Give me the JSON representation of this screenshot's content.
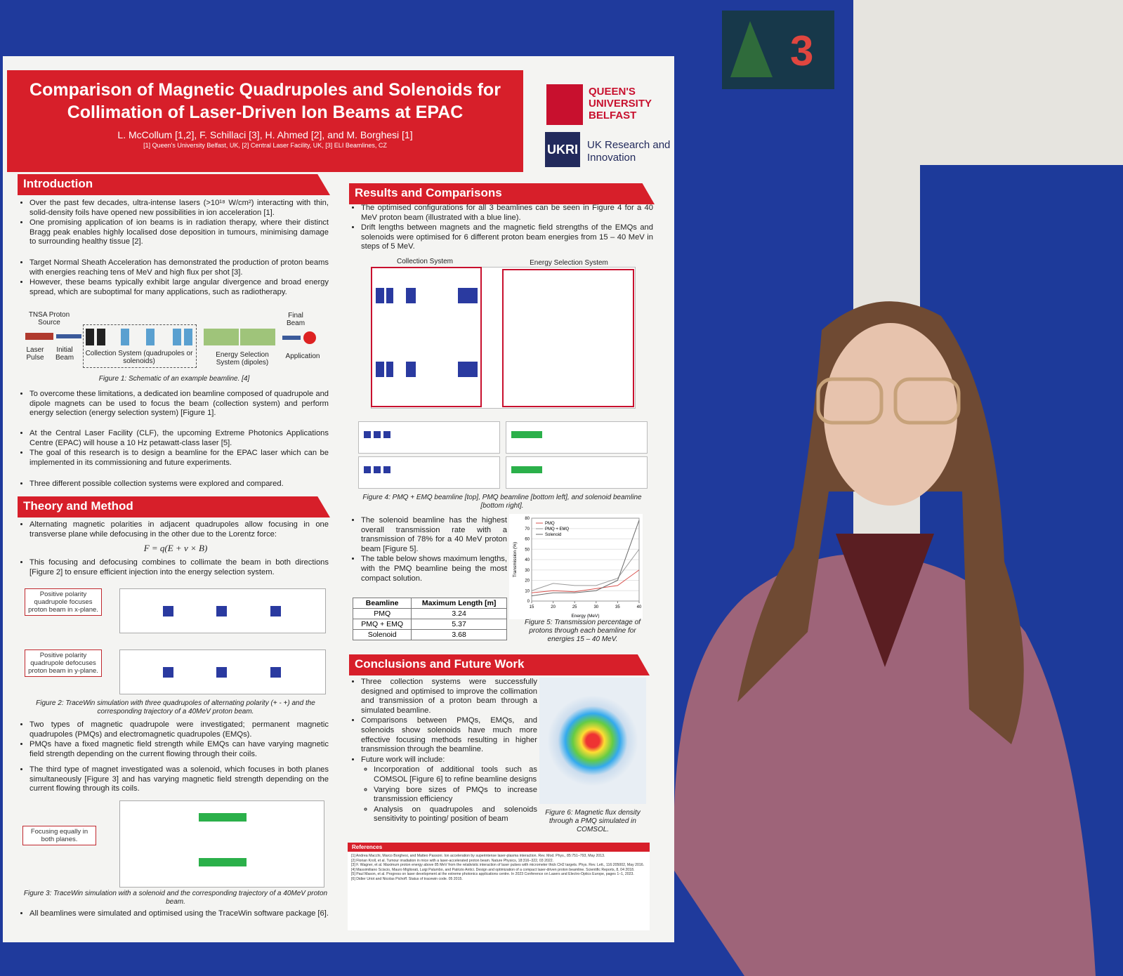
{
  "card": {
    "number": "3"
  },
  "header": {
    "title": "Comparison of Magnetic Quadrupoles and Solenoids for Collimation of Laser-Driven Ion Beams at EPAC",
    "authors": "L. McCollum [1,2], F. Schillaci [3], H. Ahmed [2], and M. Borghesi [1]",
    "affiliations": "[1] Queen's University Belfast, UK, [2] Central Laser Facility, UK, [3] ELI Beamlines, CZ"
  },
  "logos": {
    "qub": "QUEEN'S UNIVERSITY BELFAST",
    "ukri_mark": "UKRI",
    "ukri": "UK Research and Innovation"
  },
  "introduction": {
    "heading": "Introduction",
    "block1": [
      "Over the past few decades, ultra-intense lasers (>10¹⁸ W/cm²) interacting with thin, solid-density foils have opened new possibilities in ion acceleration [1].",
      "One promising application of ion beams is in radiation therapy, where their distinct Bragg peak enables highly localised dose deposition in tumours, minimising damage to surrounding healthy tissue [2]."
    ],
    "block2": [
      "Target Normal Sheath Acceleration has demonstrated the production of proton beams with energies reaching tens of MeV and high flux per shot [3].",
      "However, these beams typically exhibit large angular divergence and broad energy spread, which are suboptimal for many applications, such as radiotherapy."
    ],
    "figure1": {
      "source": "TNSA Proton Source",
      "laser": "Laser Pulse",
      "initial": "Initial Beam",
      "collection": "Collection System (quadrupoles or solenoids)",
      "energy": "Energy Selection System (dipoles)",
      "final": "Final Beam",
      "application": "Application",
      "caption": "Figure 1: Schematic of an example beamline. [4]"
    },
    "block3": [
      "To overcome these limitations, a dedicated ion beamline composed of quadrupole and dipole magnets can be used to focus the beam (collection system) and perform energy selection (energy selection system) [Figure 1]."
    ],
    "block4": [
      "At the Central Laser Facility (CLF), the upcoming Extreme Photonics Applications Centre (EPAC) will house a 10 Hz petawatt-class laser [5].",
      "The goal of this research is to design a beamline for the EPAC laser which can be implemented in its commissioning and future experiments."
    ],
    "block5": [
      "Three different possible collection systems were explored and compared."
    ]
  },
  "theory": {
    "heading": "Theory and Method",
    "block1": [
      "Alternating magnetic polarities in adjacent quadrupoles allow focusing in one transverse plane while defocusing in the other due to the Lorentz force:"
    ],
    "formula": "F = q(E + v × B)",
    "block2": [
      "This focusing and defocusing combines to collimate the beam in both directions [Figure 2] to ensure efficient injection into the energy selection system."
    ],
    "figure2": {
      "label_x": "Positive polarity quadrupole focuses proton beam in x-plane.",
      "label_y": "Positive polarity quadrupole defocuses proton beam in y-plane.",
      "caption": "Figure 2: TraceWin simulation with three quadrupoles of alternating polarity (+ - +) and the corresponding trajectory of a 40MeV proton beam."
    },
    "block3": [
      "Two types of magnetic quadrupole were investigated; permanent magnetic quadrupoles (PMQs) and electromagnetic quadrupoles (EMQs).",
      "PMQs have a fixed magnetic field strength while EMQs can have varying magnetic field strength depending on the current flowing through their coils."
    ],
    "block4": [
      "The third type of magnet investigated was a solenoid, which focuses in both planes simultaneously [Figure 3] and has varying magnetic field strength depending on the current flowing through its coils."
    ],
    "figure3": {
      "label": "Focusing equally in both planes.",
      "caption": "Figure 3: TraceWin simulation with a solenoid and the corresponding trajectory of a 40MeV proton beam."
    },
    "block5": [
      "All beamlines were simulated and optimised using the TraceWin software package [6]."
    ]
  },
  "results": {
    "heading": "Results and Comparisons",
    "block1": [
      "The optimised configurations for all 3 beamlines can be seen in Figure 4 for a 40 MeV proton beam (illustrated with a blue line).",
      "Drift lengths between magnets and the magnetic field strengths of the EMQs and solenoids were optimised for 6 different proton beam energies from 15 – 40 MeV in steps of 5 MeV."
    ],
    "figure4": {
      "collection": "Collection System",
      "energy": "Energy Selection System",
      "caption": "Figure 4: PMQ + EMQ beamline [top], PMQ beamline [bottom left], and solenoid beamline [bottom right]."
    },
    "block2": [
      "The solenoid beamline has the highest overall transmission rate with a transmission of 78% for a 40 MeV proton beam [Figure 5].",
      "The table below shows maximum lengths, with the PMQ beamline being the most compact solution."
    ],
    "table": {
      "header": [
        "Beamline",
        "Maximum Length [m]"
      ],
      "rows": [
        [
          "PMQ",
          3.24
        ],
        [
          "PMQ + EMQ",
          5.37
        ],
        [
          "Solenoid",
          3.68
        ]
      ]
    },
    "figure5": {
      "chart_data": {
        "type": "line",
        "x_label": "Energy (MeV)",
        "y_label": "Transmission (%)",
        "x": [
          15,
          20,
          25,
          30,
          35,
          40
        ],
        "xlim": [
          15,
          40
        ],
        "xticks": [
          15,
          20,
          25,
          30,
          35,
          40
        ],
        "ylim": [
          0,
          80
        ],
        "yticks": [
          0,
          10,
          20,
          30,
          40,
          50,
          60,
          70,
          80
        ],
        "series": [
          {
            "name": "PMQ",
            "color": "#d9534f",
            "values": [
              8,
              10,
              9,
              12,
              15,
              30
            ]
          },
          {
            "name": "PMQ + EMQ",
            "color": "#9a9a9a",
            "values": [
              10,
              17,
              15,
              15,
              22,
              50
            ]
          },
          {
            "name": "Solenoid",
            "color": "#6a6a6a",
            "values": [
              5,
              8,
              8,
              10,
              20,
              78
            ]
          }
        ]
      },
      "caption": "Figure 5: Transmission percentage of protons through each beamline for energies 15 – 40 MeV."
    }
  },
  "conclusions": {
    "heading": "Conclusions and Future Work",
    "bullets": [
      "Three collection systems were successfully designed and optimised to improve the collimation and transmission of a proton beam through a simulated beamline.",
      "Comparisons between PMQs, EMQs, and solenoids show solenoids have much more effective focusing methods resulting in higher transmission through the beamline.",
      "Future work will include:"
    ],
    "future_work": [
      "Incorporation of additional tools such as COMSOL [Figure 6] to refine beamline designs",
      "Varying bore sizes of PMQs to increase transmission efficiency",
      "Analysis on quadrupoles and solenoids sensitivity to pointing/ position of beam"
    ],
    "figure6": {
      "caption": "Figure 6: Magnetic flux density through a PMQ simulated in COMSOL."
    }
  },
  "references": {
    "heading": "References",
    "items": [
      "[1] Andrea Macchi, Marco Borghesi, and Matteo Passoni. Ion acceleration by superintense laser-plasma interaction. Rev. Mod. Phys., 85:751–793, May 2013.",
      "[2] Florian Kroll, et al. Tumour irradiation in mice with a laser-accelerated proton beam. Nature Physics, 18:316–322, 03 2022.",
      "[3] F. Wagner, et al. Maximum proton energy above 85 MeV from the relativistic interaction of laser pulses with micrometer thick CH2 targets. Phys. Rev. Lett., 116:205002, May 2016.",
      "[4] Massimiliano Sciscio, Mauro Migliorati, Luigi Palumbo, and Patrizio Antici. Design and optimization of a compact laser-driven proton beamline. Scientific Reports, 8, 04 2018.",
      "[5] Paul Mason, et al. Progress on laser development at the extreme photonics applications centre. In 2023 Conference on Lasers and Electro-Optics Europe, pages 1–1, 2023.",
      "[6] Didier Uriot and Nicolas Pichoff. Status of tracewin code. 05 2015."
    ]
  }
}
